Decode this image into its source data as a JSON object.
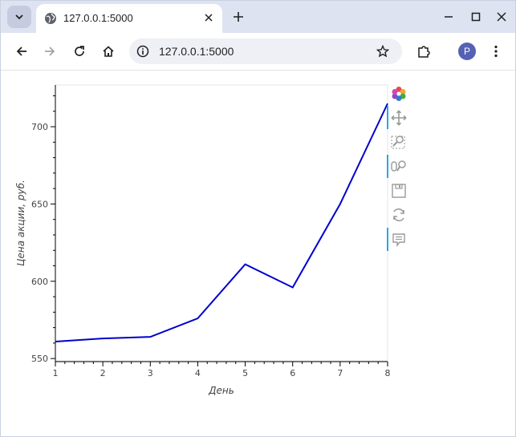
{
  "browser": {
    "tab_title": "127.0.0.1:5000",
    "url": "127.0.0.1:5000",
    "profile_initial": "P"
  },
  "icons": {
    "tab_search": "chevron-down-icon",
    "favicon": "globe-icon",
    "tab_close": "close-icon",
    "new_tab": "plus-icon",
    "minimize": "minimize-icon",
    "maximize": "maximize-icon",
    "close_window": "close-icon",
    "back": "arrow-left-icon",
    "forward": "arrow-right-icon",
    "reload": "reload-icon",
    "home": "home-icon",
    "site_info": "info-icon",
    "bookmark": "star-icon",
    "extensions": "puzzle-icon",
    "menu": "kebab-menu-icon"
  },
  "bokeh_toolbar": {
    "tools": [
      "bokeh-logo",
      "pan",
      "box-zoom",
      "wheel-zoom",
      "save",
      "reset",
      "hover"
    ],
    "active": [
      "pan",
      "wheel-zoom",
      "hover"
    ]
  },
  "chart_data": {
    "type": "line",
    "title": "",
    "xlabel": "День",
    "ylabel": "Цена акции, руб.",
    "x": [
      1,
      2,
      3,
      4,
      5,
      6,
      7,
      8
    ],
    "series": [
      {
        "values": [
          561,
          563,
          564,
          576,
          611,
          596,
          650,
          715
        ]
      }
    ],
    "xlim": [
      1,
      8
    ],
    "ylim": [
      548,
      727
    ],
    "x_ticks": [
      1,
      2,
      3,
      4,
      5,
      6,
      7,
      8
    ],
    "y_ticks": [
      550,
      600,
      650,
      700
    ],
    "grid": false,
    "legend": "none",
    "line_color": "#0000cd"
  }
}
